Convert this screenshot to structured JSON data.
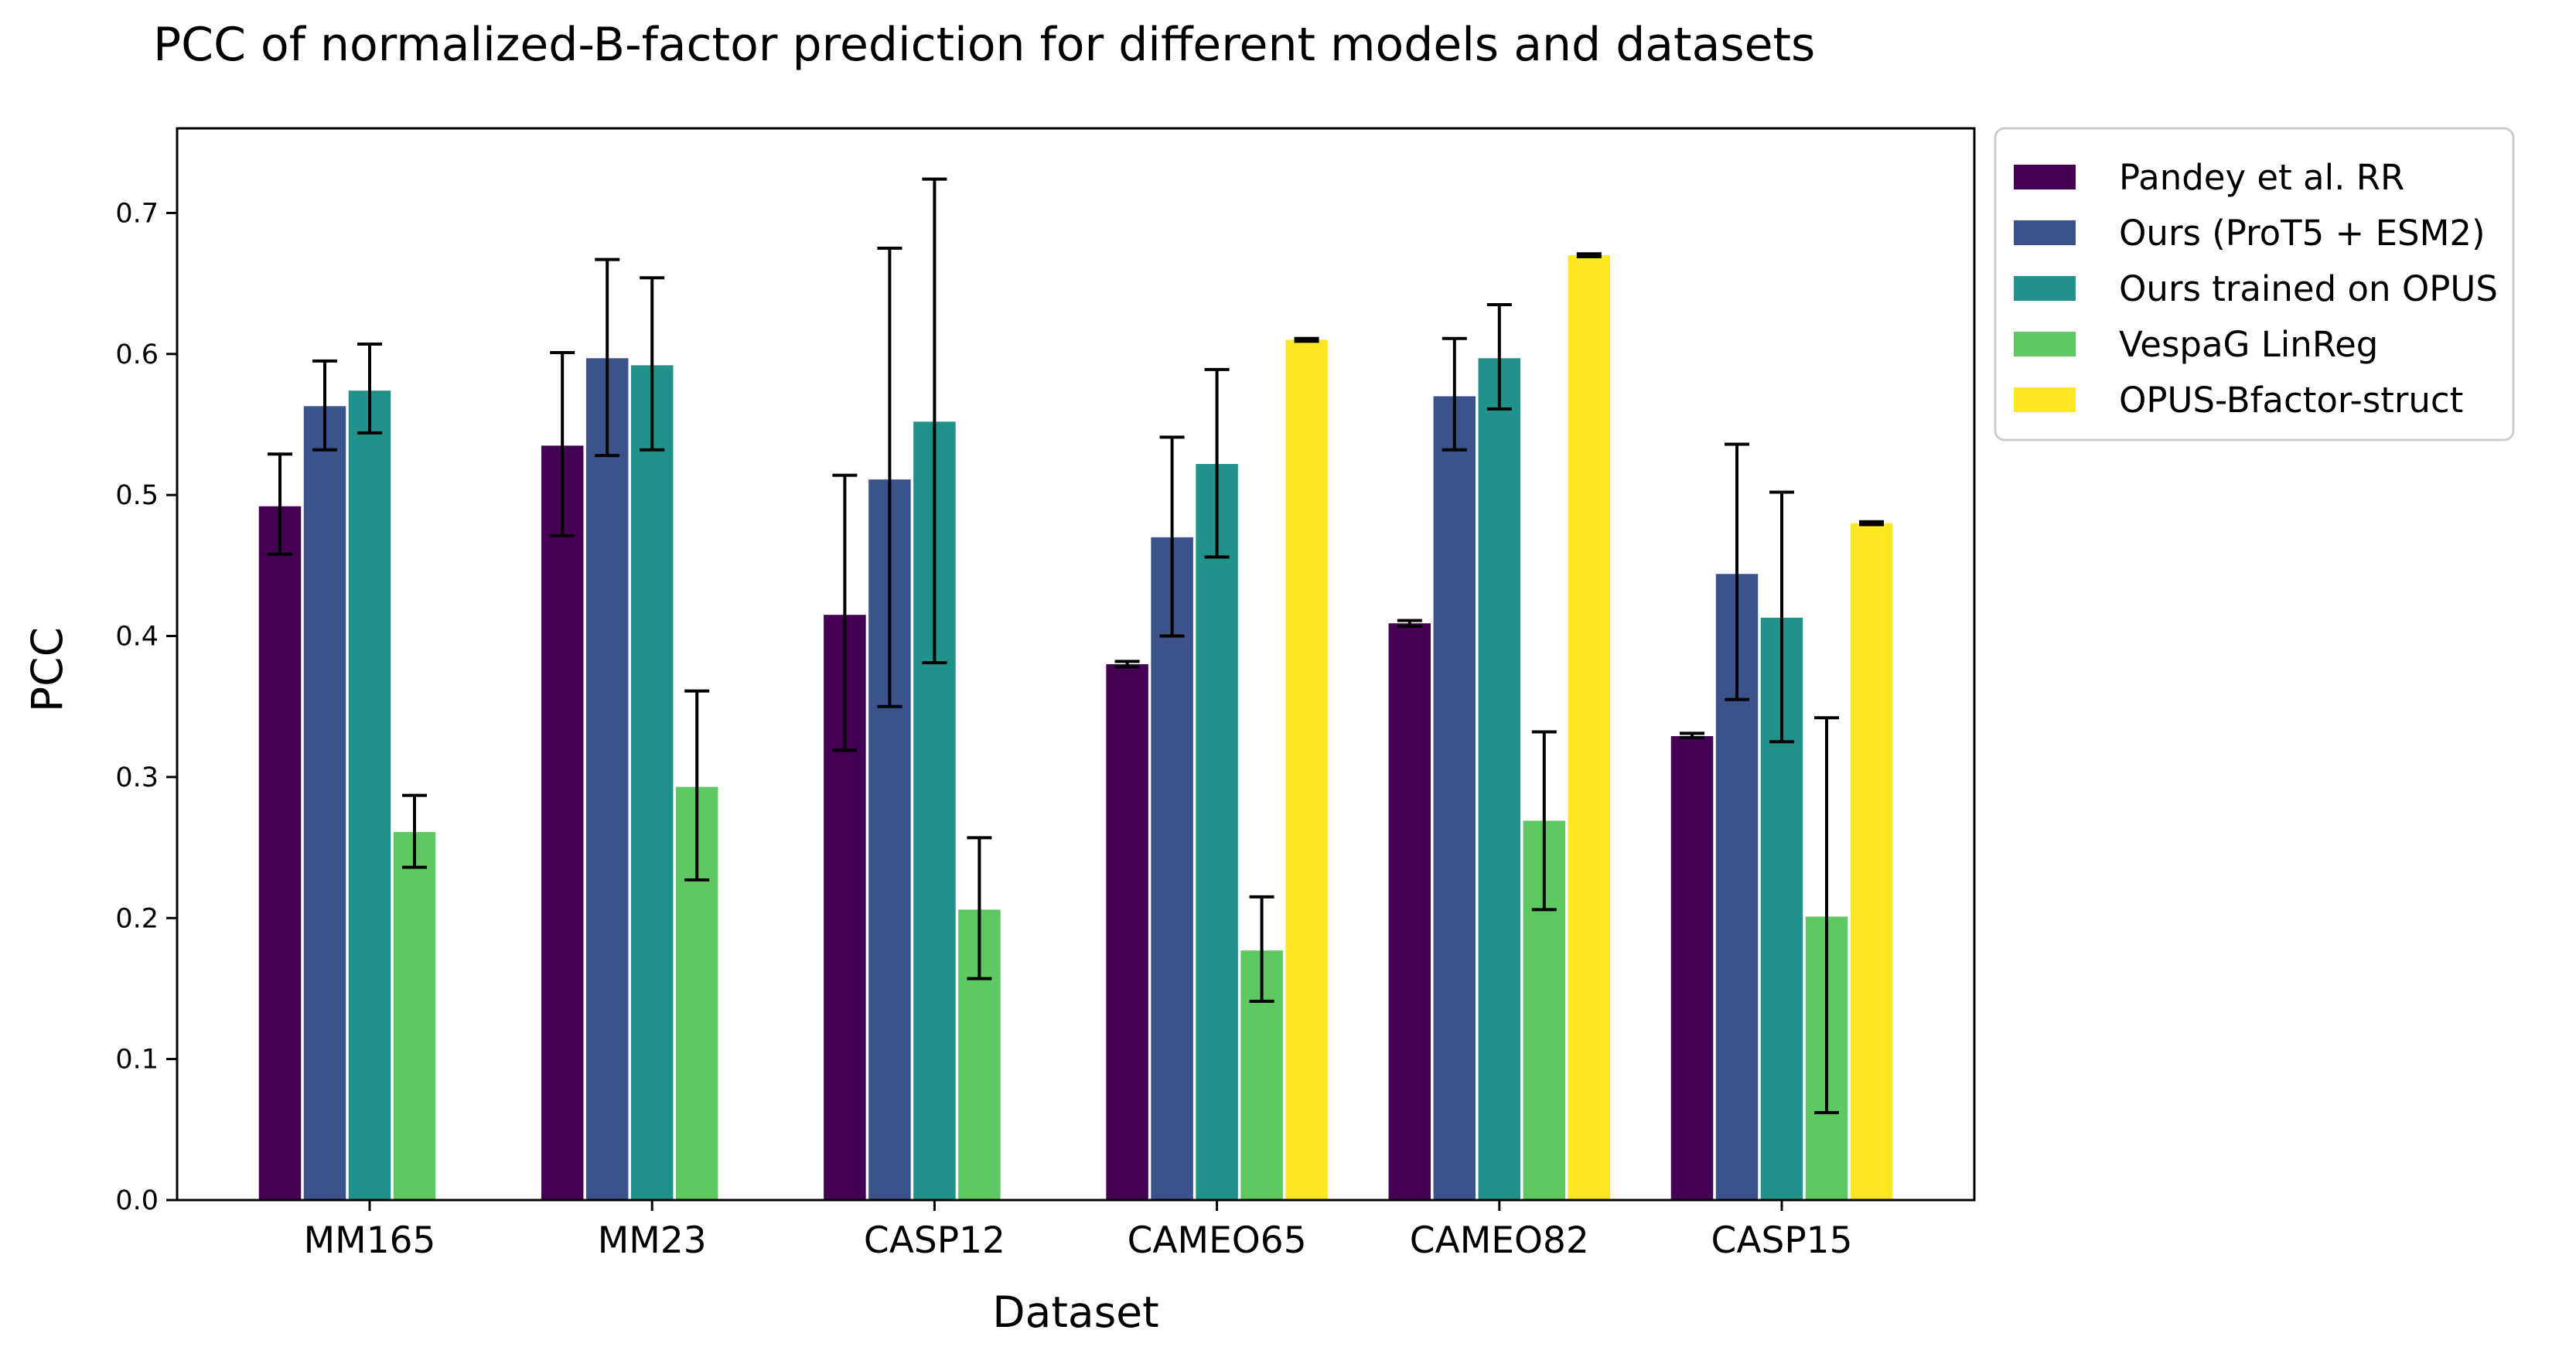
{
  "chart_data": {
    "type": "bar",
    "title": "PCC of normalized-B-factor prediction for different models and datasets",
    "xlabel": "Dataset",
    "ylabel": "PCC",
    "ylim": [
      0,
      0.76
    ],
    "yticks": [
      "0.0",
      "0.1",
      "0.2",
      "0.3",
      "0.4",
      "0.5",
      "0.6",
      "0.7"
    ],
    "grid": false,
    "legend_position": "outside-top-right",
    "categories": [
      "MM165",
      "MM23",
      "CASP12",
      "CAMEO65",
      "CAMEO82",
      "CASP15"
    ],
    "series": [
      {
        "name": "Pandey et al. RR",
        "color": "#440154",
        "values": [
          0.492,
          0.535,
          0.415,
          0.38,
          0.409,
          0.329
        ],
        "err_low": [
          0.458,
          0.471,
          0.319,
          0.378,
          0.407,
          0.328
        ],
        "err_high": [
          0.529,
          0.601,
          0.514,
          0.382,
          0.411,
          0.331
        ]
      },
      {
        "name": "Ours (ProT5 + ESM2)",
        "color": "#3b528b",
        "values": [
          0.563,
          0.597,
          0.511,
          0.47,
          0.57,
          0.444
        ],
        "err_low": [
          0.532,
          0.528,
          0.35,
          0.4,
          0.532,
          0.355
        ],
        "err_high": [
          0.595,
          0.667,
          0.675,
          0.541,
          0.611,
          0.536
        ]
      },
      {
        "name": "Ours trained on OPUS",
        "color": "#21918c",
        "values": [
          0.574,
          0.592,
          0.552,
          0.522,
          0.597,
          0.413
        ],
        "err_low": [
          0.544,
          0.532,
          0.381,
          0.456,
          0.561,
          0.325
        ],
        "err_high": [
          0.607,
          0.654,
          0.724,
          0.589,
          0.635,
          0.502
        ]
      },
      {
        "name": "VespaG LinReg",
        "color": "#5ec962",
        "values": [
          0.261,
          0.293,
          0.206,
          0.177,
          0.269,
          0.201
        ],
        "err_low": [
          0.236,
          0.227,
          0.157,
          0.141,
          0.206,
          0.062
        ],
        "err_high": [
          0.287,
          0.361,
          0.257,
          0.215,
          0.332,
          0.342
        ]
      },
      {
        "name": "OPUS-Bfactor-struct",
        "color": "#fde725",
        "values": [
          0.0,
          0.0,
          0.0,
          0.61,
          0.67,
          0.48
        ],
        "err_low": [
          0.0,
          0.0,
          0.0,
          0.609,
          0.669,
          0.479
        ],
        "err_high": [
          0.0,
          0.0,
          0.0,
          0.611,
          0.671,
          0.481
        ]
      }
    ]
  }
}
